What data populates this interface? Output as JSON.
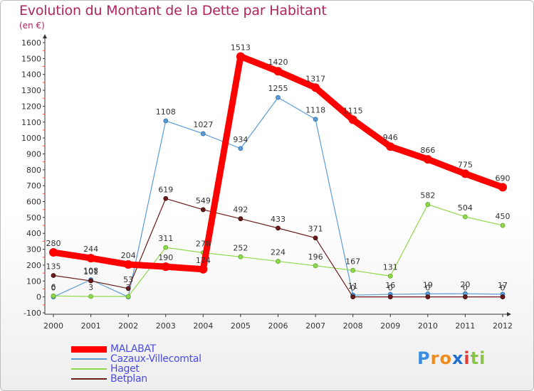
{
  "header": {
    "title": "Evolution du Montant de la Dette par Habitant",
    "subtitle": "(en €)"
  },
  "logo": {
    "letters": [
      "P",
      "r",
      "o",
      "x",
      "i",
      "t",
      "i"
    ],
    "colors": [
      "#3a8de0",
      "#f08c1c",
      "#f08c1c",
      "#1e6fd0",
      "#e03b3b",
      "#8bc34a",
      "#8bc34a"
    ]
  },
  "chart_data": {
    "type": "line",
    "title": "Evolution du Montant de la Dette par Habitant",
    "subtitle": "(en €)",
    "x": [
      "2000",
      "2001",
      "2002",
      "2003",
      "2004",
      "2005",
      "2006",
      "2007",
      "2008",
      "2009",
      "2010",
      "2011",
      "2012"
    ],
    "ylim": [
      -100,
      1600
    ],
    "yticks": [
      -100,
      0,
      100,
      200,
      300,
      400,
      500,
      600,
      700,
      800,
      900,
      1000,
      1100,
      1200,
      1300,
      1400,
      1500,
      1600
    ],
    "grid": false,
    "legend_position": "bottom-left",
    "series": [
      {
        "name": "MALABAT",
        "color": "#ff0000",
        "values": [
          280,
          244,
          204,
          190,
          174,
          1513,
          1420,
          1317,
          1115,
          946,
          866,
          775,
          690
        ]
      },
      {
        "name": "Cazaux-Villecomtal",
        "color": "#5b9bd5",
        "values": [
          0,
          108,
          0,
          1108,
          1027,
          934,
          1255,
          1118,
          11,
          16,
          19,
          20,
          17
        ]
      },
      {
        "name": "Haget",
        "color": "#8fd84a",
        "values": [
          6,
          3,
          3,
          311,
          278,
          252,
          224,
          196,
          167,
          131,
          582,
          504,
          450
        ]
      },
      {
        "name": "Betplan",
        "color": "#6b1a1a",
        "values": [
          135,
          101,
          53,
          619,
          549,
          492,
          433,
          371,
          0,
          0,
          0,
          0,
          0
        ]
      }
    ],
    "point_labels": [
      {
        "series": 0,
        "index": 0,
        "text": "280"
      },
      {
        "series": 0,
        "index": 1,
        "text": "244"
      },
      {
        "series": 0,
        "index": 2,
        "text": "204"
      },
      {
        "series": 0,
        "index": 3,
        "text": "190"
      },
      {
        "series": 0,
        "index": 4,
        "text": "174"
      },
      {
        "series": 0,
        "index": 5,
        "text": "1513"
      },
      {
        "series": 0,
        "index": 6,
        "text": "1420"
      },
      {
        "series": 0,
        "index": 7,
        "text": "1317"
      },
      {
        "series": 0,
        "index": 8,
        "text": "1115"
      },
      {
        "series": 0,
        "index": 9,
        "text": "946"
      },
      {
        "series": 0,
        "index": 10,
        "text": "866"
      },
      {
        "series": 0,
        "index": 11,
        "text": "775"
      },
      {
        "series": 0,
        "index": 12,
        "text": "690"
      },
      {
        "series": 1,
        "index": 0,
        "text": "0"
      },
      {
        "series": 1,
        "index": 1,
        "text": "108"
      },
      {
        "series": 1,
        "index": 3,
        "text": "1108"
      },
      {
        "series": 1,
        "index": 4,
        "text": "1027"
      },
      {
        "series": 1,
        "index": 5,
        "text": "934"
      },
      {
        "series": 1,
        "index": 6,
        "text": "1255"
      },
      {
        "series": 1,
        "index": 7,
        "text": "1118"
      },
      {
        "series": 1,
        "index": 8,
        "text": "11"
      },
      {
        "series": 1,
        "index": 9,
        "text": "16"
      },
      {
        "series": 1,
        "index": 10,
        "text": "19"
      },
      {
        "series": 1,
        "index": 11,
        "text": "20"
      },
      {
        "series": 1,
        "index": 12,
        "text": "17"
      },
      {
        "series": 2,
        "index": 0,
        "text": "6"
      },
      {
        "series": 2,
        "index": 1,
        "text": "3"
      },
      {
        "series": 2,
        "index": 2,
        "text": "3"
      },
      {
        "series": 2,
        "index": 3,
        "text": "311"
      },
      {
        "series": 2,
        "index": 4,
        "text": "278"
      },
      {
        "series": 2,
        "index": 5,
        "text": "252"
      },
      {
        "series": 2,
        "index": 6,
        "text": "224"
      },
      {
        "series": 2,
        "index": 7,
        "text": "196"
      },
      {
        "series": 2,
        "index": 8,
        "text": "167"
      },
      {
        "series": 2,
        "index": 9,
        "text": "131"
      },
      {
        "series": 2,
        "index": 10,
        "text": "582"
      },
      {
        "series": 2,
        "index": 11,
        "text": "504"
      },
      {
        "series": 2,
        "index": 12,
        "text": "450"
      },
      {
        "series": 3,
        "index": 0,
        "text": "135"
      },
      {
        "series": 3,
        "index": 1,
        "text": "101"
      },
      {
        "series": 3,
        "index": 2,
        "text": "53"
      },
      {
        "series": 3,
        "index": 3,
        "text": "619"
      },
      {
        "series": 3,
        "index": 4,
        "text": "549"
      },
      {
        "series": 3,
        "index": 5,
        "text": "492"
      },
      {
        "series": 3,
        "index": 6,
        "text": "433"
      },
      {
        "series": 3,
        "index": 7,
        "text": "371"
      },
      {
        "series": 3,
        "index": 8,
        "text": "0"
      },
      {
        "series": 3,
        "index": 9,
        "text": "0"
      },
      {
        "series": 3,
        "index": 10,
        "text": "0"
      },
      {
        "series": 3,
        "index": 11,
        "text": "0"
      },
      {
        "series": 3,
        "index": 12,
        "text": "0"
      }
    ]
  }
}
